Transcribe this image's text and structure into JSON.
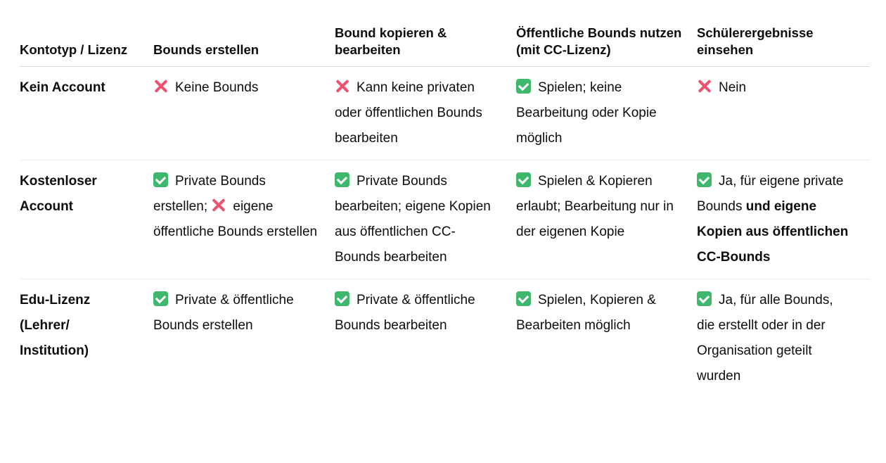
{
  "headers": [
    "Kontotyp / Lizenz",
    "Bounds erstellen",
    "Bound kopieren & bearbeiten",
    "Öffentliche Bounds nutzen (mit CC-Lizenz)",
    "Schülerergebnisse einsehen"
  ],
  "rows": [
    {
      "type": "Kein Account",
      "cells": [
        [
          {
            "icon": "cross"
          },
          {
            "text": "Keine Bounds"
          }
        ],
        [
          {
            "icon": "cross"
          },
          {
            "text": "Kann keine privaten oder öffentlichen Bounds bearbeiten"
          }
        ],
        [
          {
            "icon": "check"
          },
          {
            "text": "Spielen; keine Bearbeitung oder Kopie möglich"
          }
        ],
        [
          {
            "icon": "cross"
          },
          {
            "text": "Nein"
          }
        ]
      ]
    },
    {
      "type": "Kostenloser Account",
      "cells": [
        [
          {
            "icon": "check"
          },
          {
            "text": "Private Bounds erstellen; "
          },
          {
            "icon": "cross"
          },
          {
            "text": "eigene öffentliche Bounds erstellen"
          }
        ],
        [
          {
            "icon": "check"
          },
          {
            "text": "Private Bounds bearbeiten; eigene Kopien aus öffentlichen CC-Bounds bearbeiten"
          }
        ],
        [
          {
            "icon": "check"
          },
          {
            "text": "Spielen & Kopieren erlaubt; Bearbeitung nur in der eigenen Kopie"
          }
        ],
        [
          {
            "icon": "check"
          },
          {
            "text": "Ja, für eigene private Bounds "
          },
          {
            "bold": "und eigene Kopien aus öffentlichen CC-Bounds"
          }
        ]
      ]
    },
    {
      "type": "Edu-Lizenz (Lehrer/ Institution)",
      "cells": [
        [
          {
            "icon": "check"
          },
          {
            "text": "Private & öffentliche Bounds erstellen"
          }
        ],
        [
          {
            "icon": "check"
          },
          {
            "text": "Private & öffentliche Bounds bearbeiten"
          }
        ],
        [
          {
            "icon": "check"
          },
          {
            "text": "Spielen, Kopieren & Bearbeiten möglich"
          }
        ],
        [
          {
            "icon": "check"
          },
          {
            "text": "Ja, für alle Bounds, die erstellt oder in der Organisation geteilt wurden"
          }
        ]
      ]
    }
  ],
  "colors": {
    "check": "#3fb86e",
    "cross": "#f0506e"
  }
}
